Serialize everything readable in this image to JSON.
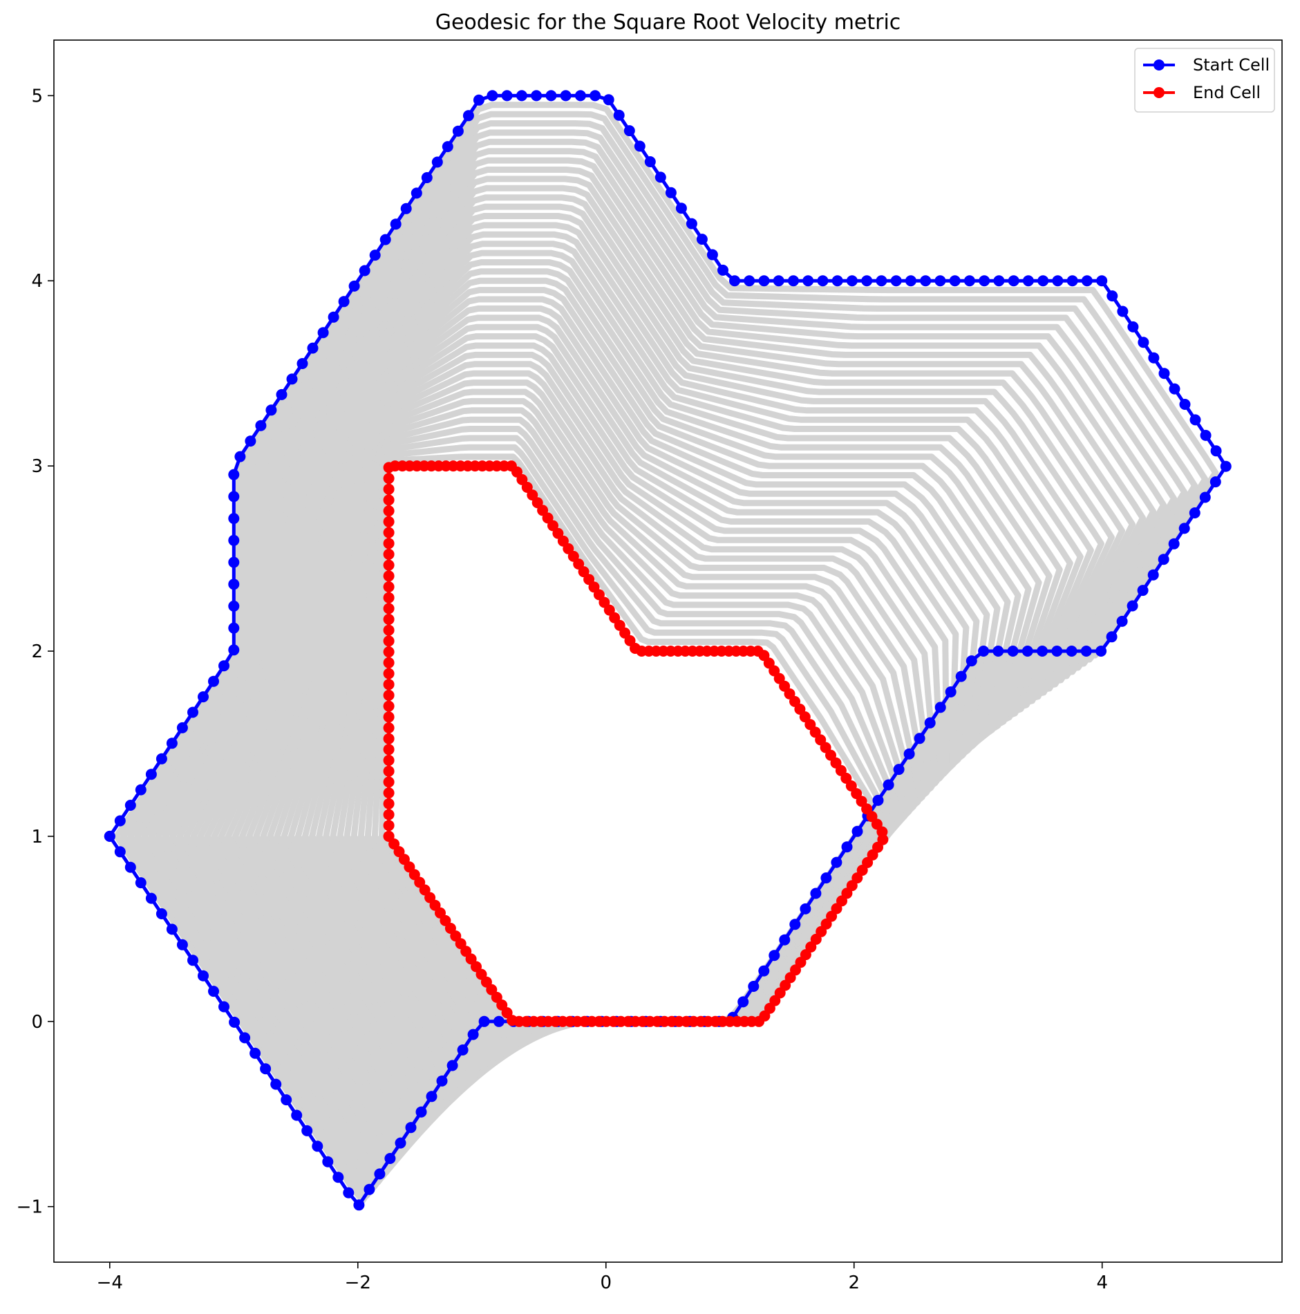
{
  "chart_data": {
    "type": "line",
    "title": "Geodesic for the Square Root Velocity metric",
    "xlabel": "",
    "ylabel": "",
    "xlim": [
      -4.45,
      5.45
    ],
    "ylim": [
      -1.3,
      5.3
    ],
    "xticks": [
      -4,
      -2,
      0,
      2,
      4
    ],
    "xtick_labels": [
      "−4",
      "−2",
      "0",
      "2",
      "4"
    ],
    "yticks": [
      -1,
      0,
      1,
      2,
      3,
      4,
      5
    ],
    "ytick_labels": [
      "−1",
      "0",
      "1",
      "2",
      "3",
      "4",
      "5"
    ],
    "grid": false,
    "legend_position": "top-right",
    "intermediate_curves": {
      "color": "#d3d3d3",
      "count": 40,
      "description_hidden": true
    },
    "series": [
      {
        "name": "Start Cell",
        "color": "#0000ff",
        "marker": "circle",
        "vertices": [
          [
            -4,
            1
          ],
          [
            -3,
            2
          ],
          [
            -3,
            3
          ],
          [
            -1,
            5
          ],
          [
            0,
            5
          ],
          [
            1,
            4
          ],
          [
            4,
            4
          ],
          [
            5,
            3
          ],
          [
            4,
            2
          ],
          [
            3,
            2
          ],
          [
            1,
            0
          ],
          [
            -1,
            0
          ],
          [
            -2,
            -1
          ],
          [
            -4,
            1
          ]
        ]
      },
      {
        "name": "End Cell",
        "color": "#ff0000",
        "marker": "circle",
        "vertices": [
          [
            -1.75,
            1
          ],
          [
            -1.75,
            3
          ],
          [
            -0.75,
            3
          ],
          [
            0.25,
            2
          ],
          [
            1.25,
            2
          ],
          [
            2.25,
            1
          ],
          [
            1.25,
            0
          ],
          [
            -0.75,
            0
          ],
          [
            -1.75,
            1
          ]
        ]
      }
    ]
  }
}
